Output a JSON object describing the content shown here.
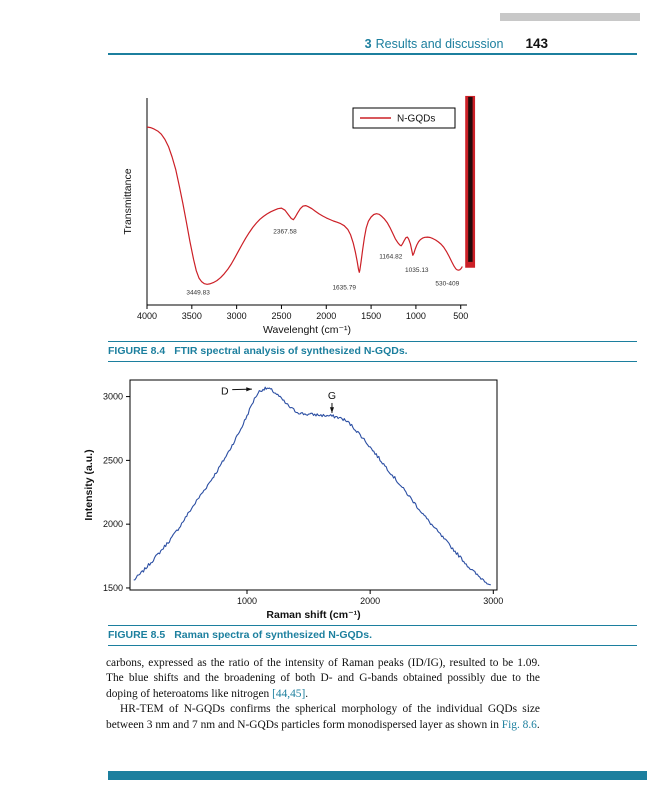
{
  "colors": {
    "accent_teal": "#1c7f9e",
    "top_bar_gray": "#c8c8c8"
  },
  "header": {
    "section_number": "3",
    "section_title": "Results and discussion",
    "page_number": "143"
  },
  "figures": [
    {
      "label": "FIGURE 8.4",
      "caption": "FTIR spectral analysis of synthesized N-GQDs."
    },
    {
      "label": "FIGURE 8.5",
      "caption": "Raman spectra of synthesized N-GQDs."
    }
  ],
  "body": {
    "paragraphs": [
      {
        "indent": false,
        "segments": [
          {
            "t": "carbons, expressed as the ratio of the intensity of Raman peaks (ID/IG), resulted to be 1.09. The blue shifts and the broadening of both D- and G-bands obtained possibly due to the doping of heteroatoms like nitrogen "
          },
          {
            "t": "[44,45]",
            "link": true
          },
          {
            "t": "."
          }
        ]
      },
      {
        "indent": true,
        "segments": [
          {
            "t": "HR-TEM of N-GQDs confirms the spherical morphology of the individual GQDs size between 3 nm and 7 nm and N-GQDs particles form monodispersed layer as shown in "
          },
          {
            "t": "Fig. 8.6",
            "link": true
          },
          {
            "t": "."
          }
        ]
      }
    ]
  },
  "chart_data": [
    {
      "type": "line",
      "name": "FTIR spectrum",
      "xlabel": "Wavelenght (cm⁻¹)",
      "ylabel": "Transmittance",
      "x_axis_reversed": true,
      "x_range": [
        4000,
        430
      ],
      "x_ticks": [
        4000,
        3500,
        3000,
        2500,
        2000,
        1500,
        1000,
        500
      ],
      "y_ticks": [],
      "legend": {
        "label": "N-GQDs",
        "position": "top-right"
      },
      "line_color": "#cc2027",
      "annotations": [
        {
          "text": "3449.83",
          "x": 3430,
          "y": 0.05
        },
        {
          "text": "2367.58",
          "x": 2460,
          "y": 0.345
        },
        {
          "text": "1635.79",
          "x": 1800,
          "y": 0.075
        },
        {
          "text": "1164.82",
          "x": 1280,
          "y": 0.225
        },
        {
          "text": "1035.13",
          "x": 990,
          "y": 0.16
        },
        {
          "text": "530-409",
          "x": 650,
          "y": 0.095
        }
      ],
      "noise_bar": {
        "x": [
          450,
          340
        ],
        "y": [
          0.18,
          1.01
        ]
      },
      "series": [
        {
          "name": "N-GQDs",
          "points": [
            [
              4000,
              0.86
            ],
            [
              3960,
              0.857
            ],
            [
              3920,
              0.85
            ],
            [
              3880,
              0.84
            ],
            [
              3840,
              0.825
            ],
            [
              3800,
              0.8
            ],
            [
              3760,
              0.765
            ],
            [
              3720,
              0.715
            ],
            [
              3680,
              0.655
            ],
            [
              3640,
              0.575
            ],
            [
              3600,
              0.49
            ],
            [
              3560,
              0.4
            ],
            [
              3520,
              0.305
            ],
            [
              3480,
              0.22
            ],
            [
              3450,
              0.165
            ],
            [
              3420,
              0.13
            ],
            [
              3390,
              0.112
            ],
            [
              3360,
              0.103
            ],
            [
              3330,
              0.1
            ],
            [
              3300,
              0.102
            ],
            [
              3260,
              0.108
            ],
            [
              3220,
              0.118
            ],
            [
              3180,
              0.132
            ],
            [
              3140,
              0.15
            ],
            [
              3100,
              0.172
            ],
            [
              3060,
              0.198
            ],
            [
              3020,
              0.228
            ],
            [
              2980,
              0.26
            ],
            [
              2940,
              0.292
            ],
            [
              2900,
              0.322
            ],
            [
              2860,
              0.35
            ],
            [
              2820,
              0.375
            ],
            [
              2780,
              0.396
            ],
            [
              2740,
              0.414
            ],
            [
              2700,
              0.428
            ],
            [
              2660,
              0.44
            ],
            [
              2620,
              0.45
            ],
            [
              2580,
              0.458
            ],
            [
              2540,
              0.465
            ],
            [
              2500,
              0.468
            ],
            [
              2460,
              0.458
            ],
            [
              2420,
              0.435
            ],
            [
              2390,
              0.418
            ],
            [
              2367,
              0.412
            ],
            [
              2345,
              0.425
            ],
            [
              2320,
              0.445
            ],
            [
              2290,
              0.465
            ],
            [
              2260,
              0.478
            ],
            [
              2230,
              0.48
            ],
            [
              2200,
              0.475
            ],
            [
              2160,
              0.465
            ],
            [
              2120,
              0.452
            ],
            [
              2080,
              0.44
            ],
            [
              2040,
              0.43
            ],
            [
              2000,
              0.421
            ],
            [
              1960,
              0.413
            ],
            [
              1920,
              0.406
            ],
            [
              1880,
              0.4
            ],
            [
              1840,
              0.393
            ],
            [
              1800,
              0.383
            ],
            [
              1760,
              0.365
            ],
            [
              1730,
              0.34
            ],
            [
              1700,
              0.3
            ],
            [
              1675,
              0.255
            ],
            [
              1655,
              0.21
            ],
            [
              1640,
              0.172
            ],
            [
              1632,
              0.158
            ],
            [
              1625,
              0.17
            ],
            [
              1612,
              0.21
            ],
            [
              1595,
              0.265
            ],
            [
              1575,
              0.325
            ],
            [
              1555,
              0.372
            ],
            [
              1530,
              0.405
            ],
            [
              1500,
              0.425
            ],
            [
              1470,
              0.437
            ],
            [
              1440,
              0.441
            ],
            [
              1410,
              0.438
            ],
            [
              1380,
              0.428
            ],
            [
              1350,
              0.415
            ],
            [
              1320,
              0.398
            ],
            [
              1290,
              0.375
            ],
            [
              1260,
              0.348
            ],
            [
              1230,
              0.32
            ],
            [
              1200,
              0.3
            ],
            [
              1180,
              0.29
            ],
            [
              1164,
              0.286
            ],
            [
              1148,
              0.296
            ],
            [
              1130,
              0.312
            ],
            [
              1112,
              0.325
            ],
            [
              1095,
              0.328
            ],
            [
              1080,
              0.318
            ],
            [
              1062,
              0.295
            ],
            [
              1048,
              0.268
            ],
            [
              1035,
              0.24
            ],
            [
              1022,
              0.25
            ],
            [
              1008,
              0.27
            ],
            [
              990,
              0.29
            ],
            [
              970,
              0.306
            ],
            [
              950,
              0.316
            ],
            [
              925,
              0.323
            ],
            [
              900,
              0.327
            ],
            [
              870,
              0.328
            ],
            [
              840,
              0.326
            ],
            [
              810,
              0.321
            ],
            [
              780,
              0.314
            ],
            [
              750,
              0.305
            ],
            [
              720,
              0.294
            ],
            [
              690,
              0.279
            ],
            [
              660,
              0.259
            ],
            [
              630,
              0.235
            ],
            [
              600,
              0.208
            ],
            [
              575,
              0.188
            ],
            [
              555,
              0.175
            ],
            [
              540,
              0.17
            ],
            [
              525,
              0.168
            ],
            [
              510,
              0.17
            ],
            [
              495,
              0.177
            ],
            [
              482,
              0.186
            ]
          ]
        }
      ]
    },
    {
      "type": "line",
      "name": "Raman spectrum",
      "xlabel": "Raman shift (cm⁻¹)",
      "ylabel": "Intensity (a.u.)",
      "x_range": [
        50,
        3030
      ],
      "y_range": [
        1484,
        3130
      ],
      "x_ticks": [
        1000,
        2000,
        3000
      ],
      "y_ticks": [
        1500,
        2000,
        2500,
        3000
      ],
      "line_color": "#2c4fa3",
      "noise_amp": 25,
      "annotations": [
        {
          "text": "D",
          "x": 820,
          "y": 3040,
          "arrow": [
            880,
            3055,
            1040,
            3058
          ]
        },
        {
          "text": "G",
          "x": 1690,
          "y": 3005,
          "arrow": [
            1690,
            2950,
            1690,
            2872
          ]
        }
      ],
      "series": [
        {
          "name": "N-GQDs",
          "points": [
            [
              80,
              1560
            ],
            [
              150,
              1625
            ],
            [
              220,
              1700
            ],
            [
              300,
              1790
            ],
            [
              380,
              1882
            ],
            [
              450,
              1975
            ],
            [
              520,
              2080
            ],
            [
              600,
              2195
            ],
            [
              680,
              2305
            ],
            [
              760,
              2420
            ],
            [
              840,
              2550
            ],
            [
              900,
              2655
            ],
            [
              950,
              2745
            ],
            [
              1000,
              2850
            ],
            [
              1040,
              2940
            ],
            [
              1070,
              3000
            ],
            [
              1100,
              3040
            ],
            [
              1130,
              3058
            ],
            [
              1165,
              3065
            ],
            [
              1200,
              3050
            ],
            [
              1240,
              3020
            ],
            [
              1280,
              2982
            ],
            [
              1320,
              2942
            ],
            [
              1360,
              2908
            ],
            [
              1400,
              2882
            ],
            [
              1450,
              2866
            ],
            [
              1500,
              2860
            ],
            [
              1560,
              2858
            ],
            [
              1620,
              2852
            ],
            [
              1680,
              2848
            ],
            [
              1730,
              2840
            ],
            [
              1780,
              2824
            ],
            [
              1830,
              2792
            ],
            [
              1880,
              2742
            ],
            [
              1930,
              2688
            ],
            [
              1980,
              2628
            ],
            [
              2040,
              2556
            ],
            [
              2110,
              2470
            ],
            [
              2180,
              2385
            ],
            [
              2250,
              2300
            ],
            [
              2320,
              2215
            ],
            [
              2390,
              2128
            ],
            [
              2460,
              2042
            ],
            [
              2530,
              1962
            ],
            [
              2600,
              1885
            ],
            [
              2670,
              1808
            ],
            [
              2740,
              1732
            ],
            [
              2810,
              1655
            ],
            [
              2880,
              1592
            ],
            [
              2940,
              1550
            ],
            [
              2980,
              1525
            ]
          ]
        }
      ]
    }
  ]
}
